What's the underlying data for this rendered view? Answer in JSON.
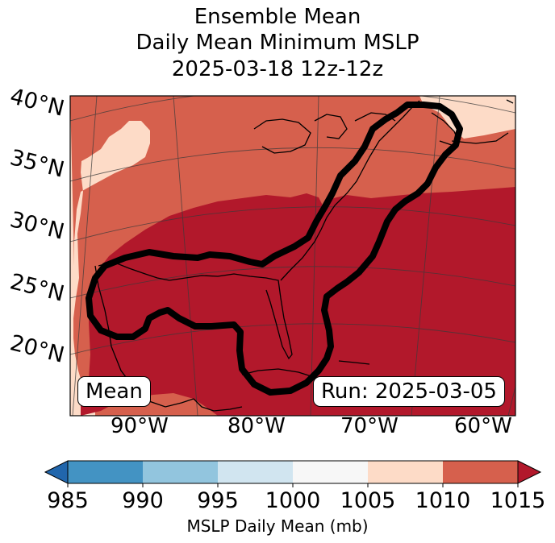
{
  "title": {
    "line1": "Ensemble Mean",
    "line2": "Daily Mean Minimum MSLP",
    "line3": "2025-03-18 12z-12z"
  },
  "lat_labels": [
    "40°N",
    "35°N",
    "30°N",
    "25°N",
    "20°N"
  ],
  "lon_labels": [
    "90°W",
    "80°W",
    "70°W",
    "60°W"
  ],
  "annotations": {
    "left": "Mean",
    "right": "Run: 2025-03-05"
  },
  "colorbar": {
    "ticks": [
      "985",
      "990",
      "995",
      "1000",
      "1005",
      "1010",
      "1015"
    ],
    "colors": [
      "#2166ac",
      "#4393c3",
      "#92c5de",
      "#d1e5f0",
      "#f7f7f7",
      "#fddbc7",
      "#d6604d",
      "#b2182b"
    ],
    "label": "MSLP Daily Mean (mb)"
  },
  "map_colors": {
    "band_1010_1015": "#d6604d",
    "band_1005_1010": "#fddbc7",
    "band_above_1015": "#b2182b",
    "outline": "#000000"
  }
}
